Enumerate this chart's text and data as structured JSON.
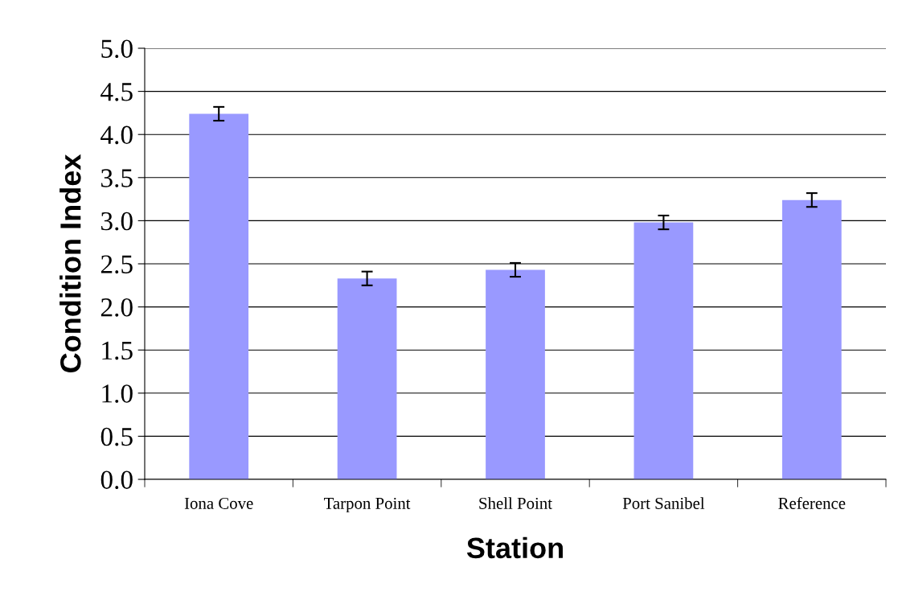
{
  "chart_data": {
    "type": "bar",
    "xlabel": "Station",
    "ylabel": "Condition Index",
    "categories": [
      "Iona Cove",
      "Tarpon Point",
      "Shell Point",
      "Port Sanibel",
      "Reference"
    ],
    "values": [
      4.24,
      2.33,
      2.43,
      2.98,
      3.24
    ],
    "errors": [
      0.08,
      0.08,
      0.08,
      0.08,
      0.08
    ],
    "color": "#9999ff",
    "ylim": [
      0,
      5
    ],
    "yticks": [
      {
        "value": 0,
        "label": "0.0"
      },
      {
        "value": 0.5,
        "label": "0.5"
      },
      {
        "value": 1,
        "label": "1.0"
      },
      {
        "value": 1.5,
        "label": "1.5"
      },
      {
        "value": 2,
        "label": "2.0"
      },
      {
        "value": 2.5,
        "label": "2.5"
      },
      {
        "value": 3,
        "label": "3.0"
      },
      {
        "value": 3.5,
        "label": "3.5"
      },
      {
        "value": 4,
        "label": "4.0"
      },
      {
        "value": 4.5,
        "label": "4.5"
      },
      {
        "value": 5,
        "label": "5.0"
      }
    ],
    "grid": "y"
  }
}
